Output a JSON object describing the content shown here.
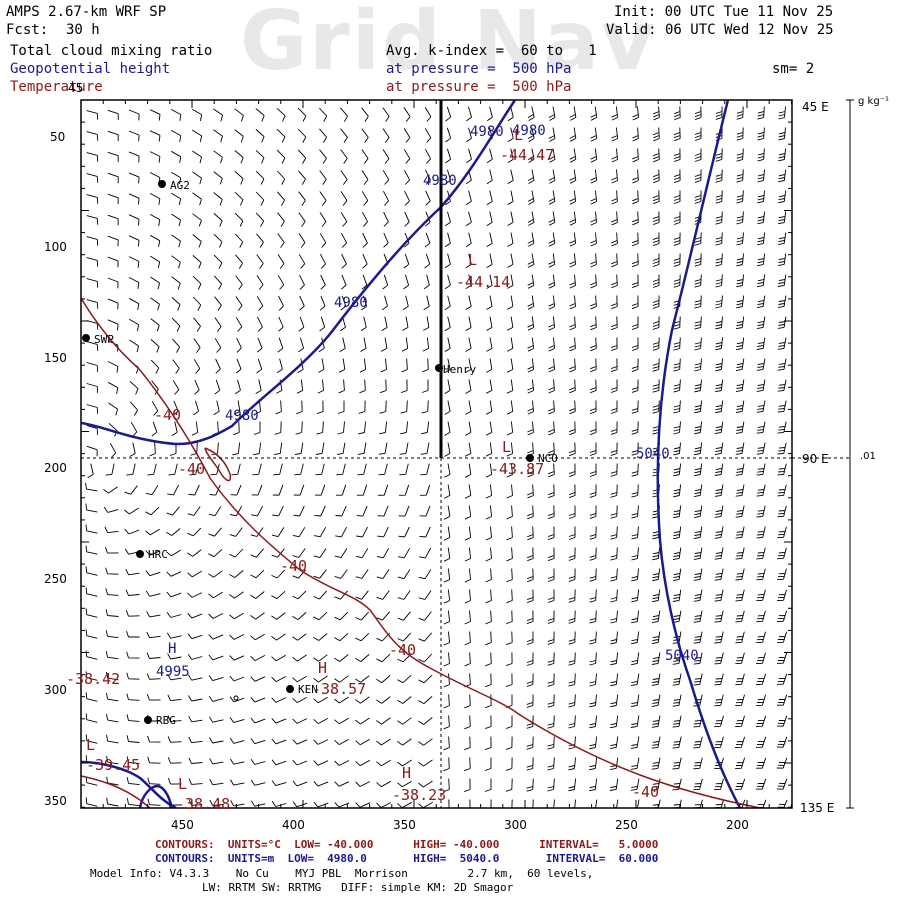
{
  "header": {
    "watermark": "Grid Nav",
    "model": "AMPS 2.67-km WRF SP",
    "forecast_label": "Fcst:",
    "forecast_hours": "30 h",
    "init": "Init: 00 UTC Tue 11 Nov 25",
    "valid": "Valid: 06 UTC Wed 12 Nov 25",
    "field_1": "Total cloud mixing ratio",
    "field_2": "Geopotential height",
    "field_3": "Temperature",
    "avg": "Avg. k-index =  60 to   1",
    "pressure_1": "at pressure =  500 hPa",
    "pressure_2": "at pressure =  500 hPa",
    "sm": "sm= 2"
  },
  "chart_data": {
    "type": "map",
    "x_ticks": [
      "450",
      "400",
      "350",
      "300",
      "250",
      "200"
    ],
    "y_ticks": [
      "50",
      "100",
      "150",
      "200",
      "250",
      "300",
      "350"
    ],
    "y_extra_left": "45",
    "right_labels": [
      "45 E",
      "90 E",
      "135 E"
    ],
    "colorbar_unit": "g kg⁻¹",
    "colorbar_value": ".01",
    "stations": [
      {
        "name": "AG2"
      },
      {
        "name": "SWP"
      },
      {
        "name": "Henry"
      },
      {
        "name": "NCO"
      },
      {
        "name": "HRC"
      },
      {
        "name": "KEN"
      },
      {
        "name": "RBG"
      }
    ],
    "height_contour_labels": [
      "4980",
      "4980",
      "4980",
      "4980",
      "4980",
      "5040",
      "5040",
      "4995"
    ],
    "temperature_contour_labels": [
      "-40",
      "-40",
      "-40",
      "-40",
      "-40"
    ],
    "centers": [
      {
        "type": "L",
        "value": "-44.47"
      },
      {
        "type": "L",
        "value": "-44.14"
      },
      {
        "type": "L",
        "value": "-43.87"
      },
      {
        "type": "H",
        "value": "-38.57"
      },
      {
        "type": "H",
        "value": "-38.23"
      },
      {
        "type": "H",
        "value": "-38.42"
      },
      {
        "type": "L",
        "value": "-39.45"
      },
      {
        "type": "L",
        "value": "-38.48"
      },
      {
        "type": "H",
        "value": "4995"
      }
    ],
    "colors": {
      "height": "#1a1a8c",
      "temperature": "#8b1a1a",
      "barbs": "#000000"
    }
  },
  "footer": {
    "red_line": "CONTOURS:  UNITS=°C  LOW= -40.000      HIGH= -40.000      INTERVAL=   5.0000",
    "blue_line": "CONTOURS:  UNITS=m  LOW=  4980.0       HIGH=  5040.0       INTERVAL=  60.000",
    "model_info": "Model Info: V4.3.3    No Cu    MYJ PBL  Morrison         2.7 km,  60 levels,",
    "physics": "LW: RRTM SW: RRTMG   DIFF: simple KM: 2D Smagor"
  }
}
